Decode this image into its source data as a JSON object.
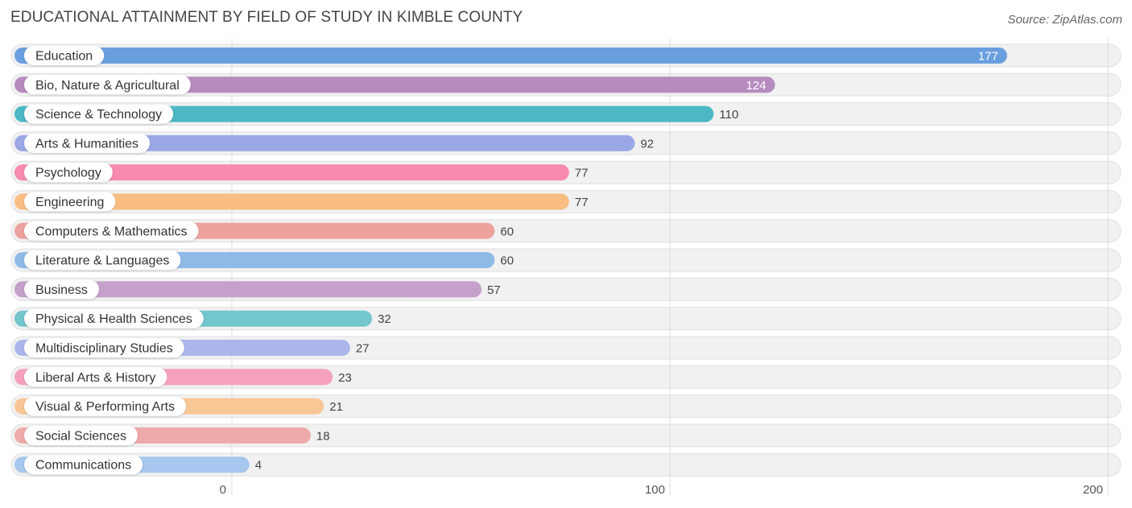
{
  "header": {
    "title": "EDUCATIONAL ATTAINMENT BY FIELD OF STUDY IN KIMBLE COUNTY",
    "source": "Source: ZipAtlas.com"
  },
  "chart_data": {
    "type": "bar",
    "orientation": "horizontal",
    "title": "EDUCATIONAL ATTAINMENT BY FIELD OF STUDY IN KIMBLE COUNTY",
    "xlabel": "",
    "ylabel": "",
    "xlim": [
      0,
      200
    ],
    "ticks": [
      0,
      100,
      200
    ],
    "grid": true,
    "categories": [
      "Education",
      "Bio, Nature & Agricultural",
      "Science & Technology",
      "Arts & Humanities",
      "Psychology",
      "Engineering",
      "Computers & Mathematics",
      "Literature & Languages",
      "Business",
      "Physical & Health Sciences",
      "Multidisciplinary Studies",
      "Liberal Arts & History",
      "Visual & Performing Arts",
      "Social Sciences",
      "Communications"
    ],
    "values": [
      177,
      124,
      110,
      92,
      77,
      77,
      60,
      60,
      57,
      32,
      27,
      23,
      21,
      18,
      4
    ],
    "colors": [
      "#6a9fdf",
      "#b68bbf",
      "#4cb8c4",
      "#9aa8e6",
      "#f68ab0",
      "#f9bd82",
      "#eea29e",
      "#8fb9e6",
      "#c4a0ca",
      "#72c6cc",
      "#acb6ec",
      "#f5a0bf",
      "#f9c696",
      "#eeaaa8",
      "#a7c7ee"
    ]
  }
}
